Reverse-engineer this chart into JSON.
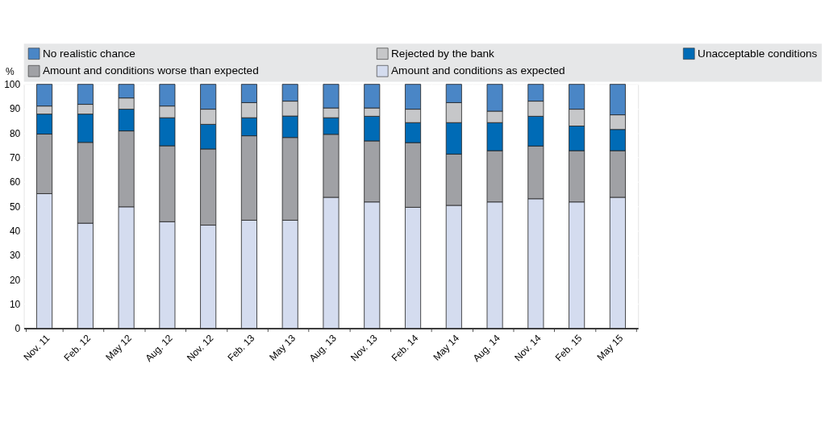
{
  "chart_data": {
    "type": "bar",
    "stacked": true,
    "ylabel": "%",
    "legend": "top",
    "grid": true,
    "categories": [
      "Nov. 11",
      "Feb. 12",
      "May 12",
      "Aug. 12",
      "Nov. 12",
      "Feb. 13",
      "May 13",
      "Aug. 13",
      "Nov. 13",
      "Feb. 14",
      "May 14",
      "Aug. 14",
      "Nov. 14",
      "Feb. 15",
      "May 15"
    ],
    "ylim": [
      0,
      100
    ],
    "yticks": [
      0,
      10,
      20,
      30,
      40,
      50,
      60,
      70,
      80,
      90,
      100
    ],
    "series": [
      {
        "name": "Amount and conditions as expected",
        "color": "#d4dcef",
        "values": [
          55.2,
          43.1,
          49.8,
          43.7,
          42.3,
          44.3,
          44.3,
          53.7,
          51.8,
          49.6,
          50.4,
          51.8,
          53.1,
          51.8,
          53.7
        ]
      },
      {
        "name": "Amount and conditions worse than expected",
        "color": "#a0a1a5",
        "values": [
          24.4,
          33.1,
          31.1,
          31.1,
          31.2,
          34.6,
          33.9,
          25.8,
          25.0,
          26.5,
          21.0,
          21.0,
          21.6,
          21.0,
          19.1
        ]
      },
      {
        "name": "Unacceptable conditions",
        "color": "#006bb6",
        "values": [
          8.2,
          11.6,
          8.9,
          11.5,
          10.1,
          7.4,
          8.8,
          6.8,
          10.1,
          8.2,
          12.9,
          11.5,
          12.2,
          10.1,
          8.7
        ]
      },
      {
        "name": "Rejected by the bank",
        "color": "#c6c7c9",
        "values": [
          3.3,
          4.0,
          4.6,
          4.8,
          6.2,
          6.2,
          6.1,
          4.0,
          3.4,
          5.5,
          8.2,
          4.7,
          6.2,
          6.9,
          6.0
        ]
      },
      {
        "name": "No realistic chance",
        "color": "#4a86c6",
        "values": [
          8.9,
          8.2,
          5.6,
          8.9,
          10.2,
          7.5,
          6.9,
          9.7,
          9.7,
          10.2,
          7.5,
          11.0,
          6.9,
          10.2,
          12.5
        ]
      }
    ]
  }
}
